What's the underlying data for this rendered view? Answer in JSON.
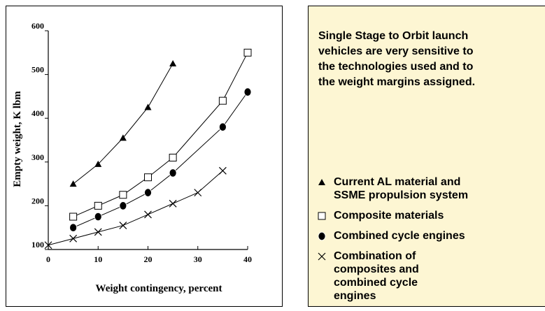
{
  "chart_data": {
    "type": "line",
    "xlabel": "Weight contingency,  percent",
    "ylabel": "Empty weight, K lbm",
    "xlim": [
      0,
      40
    ],
    "ylim": [
      100,
      600
    ],
    "xticks": [
      0,
      10,
      20,
      30,
      40
    ],
    "yticks": [
      100,
      200,
      300,
      400,
      500,
      600
    ],
    "annotation": "Single Stage to Orbit launch\nvehicles are very sensitive to\nthe technologies used and to\nthe weight margins assigned.",
    "series": [
      {
        "name": "Current AL material and\nSSME propulsion system",
        "marker": "triangle",
        "color": "#000000",
        "x": [
          5,
          10,
          15,
          20,
          25
        ],
        "values": [
          250,
          295,
          355,
          425,
          525
        ]
      },
      {
        "name": "Composite materials",
        "marker": "square",
        "color": "#000000",
        "x": [
          5,
          10,
          15,
          20,
          25,
          35,
          40
        ],
        "values": [
          175,
          200,
          225,
          265,
          310,
          440,
          550
        ]
      },
      {
        "name": "Combined cycle engines",
        "marker": "circle",
        "color": "#000000",
        "x": [
          5,
          10,
          15,
          20,
          25,
          35,
          40
        ],
        "values": [
          150,
          175,
          200,
          230,
          275,
          380,
          460
        ]
      },
      {
        "name": "Combination of\ncomposites and\ncombined  cycle\nengines",
        "marker": "x",
        "color": "#000000",
        "x": [
          0,
          5,
          10,
          15,
          20,
          25,
          30,
          35
        ],
        "values": [
          110,
          125,
          140,
          155,
          180,
          205,
          230,
          280
        ]
      }
    ]
  }
}
